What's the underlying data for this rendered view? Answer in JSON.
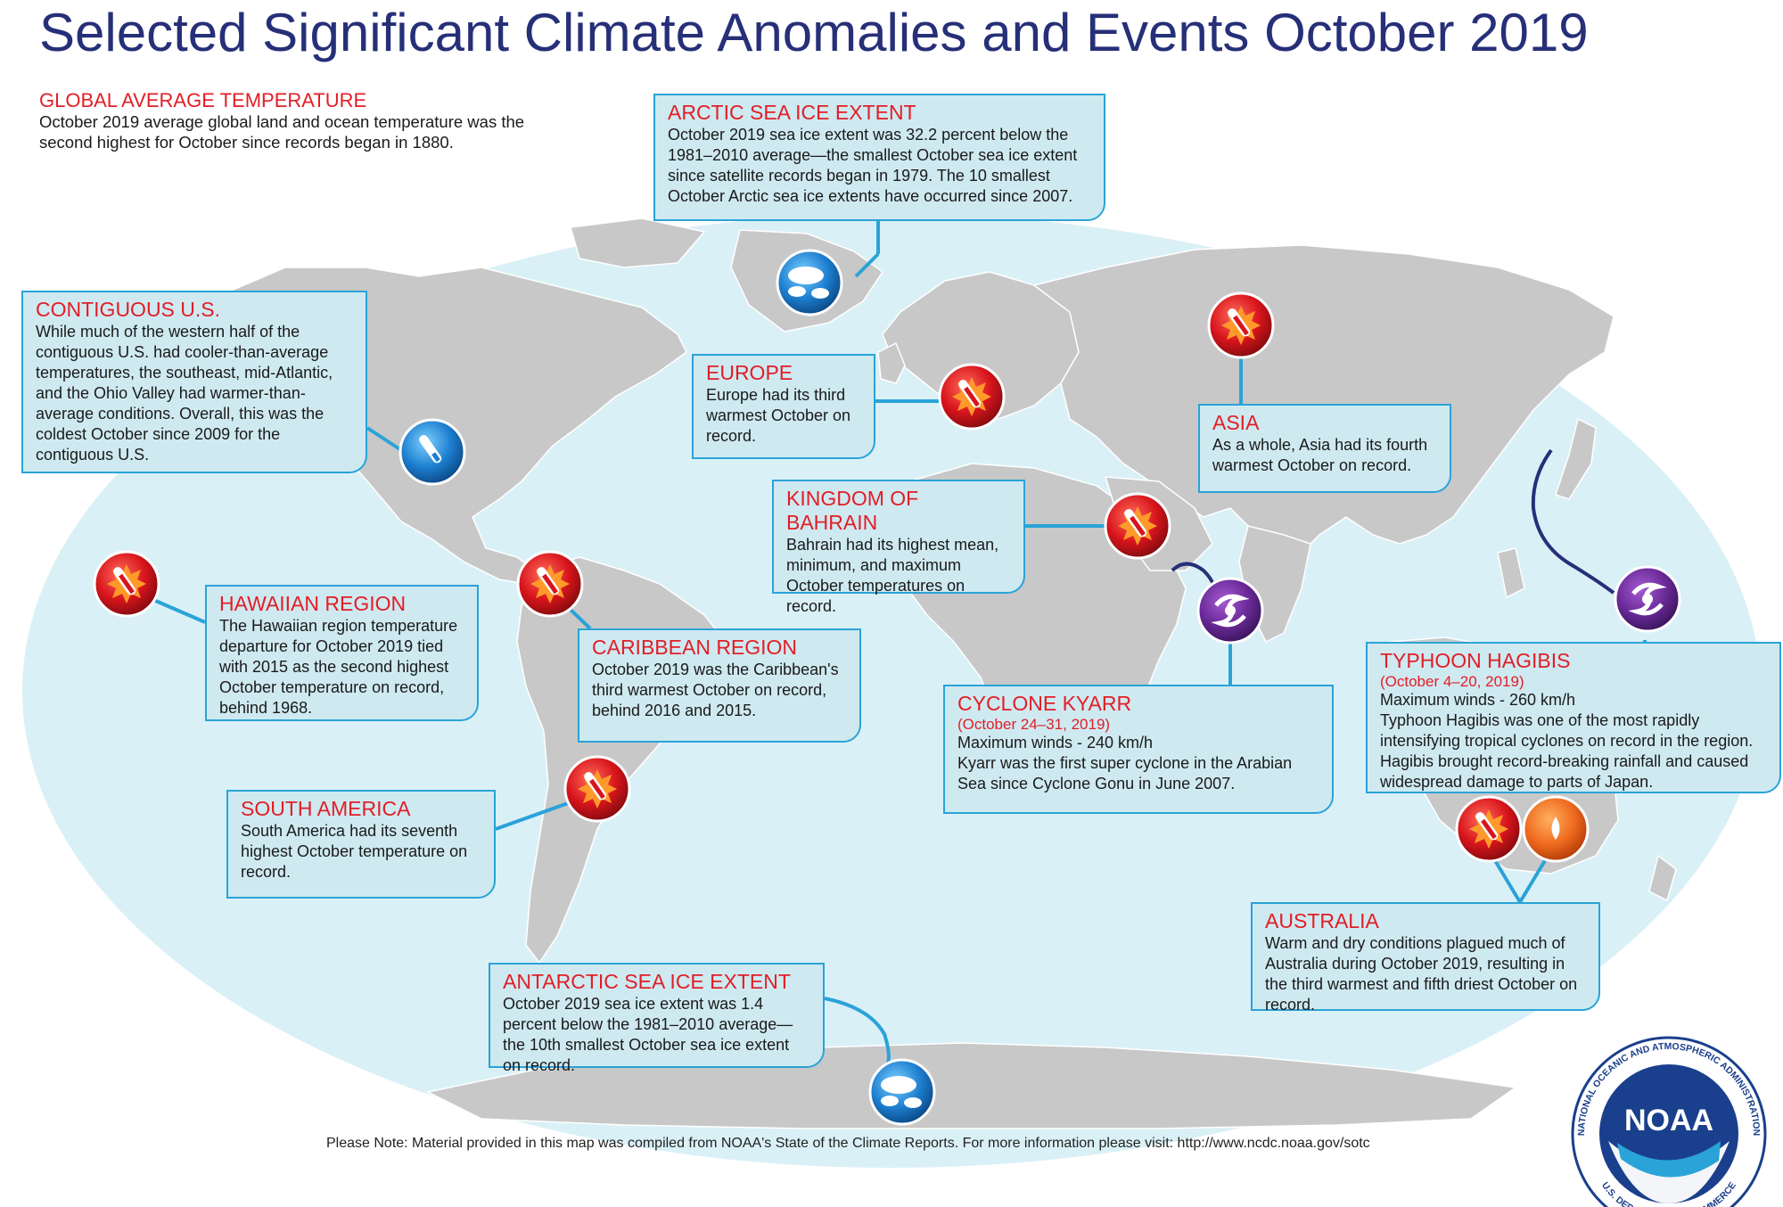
{
  "title": "Selected Significant Climate Anomalies and Events October 2019",
  "global": {
    "heading": "GLOBAL AVERAGE TEMPERATURE",
    "text": "October 2019 average global land and ocean temperature was the second highest for October since records began in 1880."
  },
  "boxes": {
    "arctic": {
      "heading": "ARCTIC SEA ICE EXTENT",
      "text": "October 2019 sea ice extent was 32.2 percent below the 1981–2010 average—the smallest October sea ice extent since satellite records began in 1979. The 10 smallest October Arctic sea ice extents have occurred since 2007."
    },
    "contiguous_us": {
      "heading": "CONTIGUOUS U.S.",
      "text": "While much of the western half of the contiguous U.S. had cooler-than-average temperatures, the southeast, mid-Atlantic, and the Ohio Valley had warmer-than-average conditions. Overall, this was the coldest October since 2009 for the contiguous U.S."
    },
    "europe": {
      "heading": "EUROPE",
      "text": "Europe had its third warmest October on record."
    },
    "asia": {
      "heading": "ASIA",
      "text": "As a whole, Asia had its fourth warmest October on record."
    },
    "bahrain": {
      "heading": "KINGDOM OF BAHRAIN",
      "text": "Bahrain had its highest mean, minimum, and maximum October temperatures on record."
    },
    "hawaii": {
      "heading": "HAWAIIAN REGION",
      "text": "The Hawaiian region temperature departure for October 2019 tied with 2015 as the second highest October temperature on record, behind 1968."
    },
    "caribbean": {
      "heading": "CARIBBEAN REGION",
      "text": "October 2019 was the Caribbean's third warmest October on record, behind 2016 and 2015."
    },
    "kyarr": {
      "heading": "CYCLONE KYARR",
      "dates": "(October 24–31, 2019)",
      "winds": "Maximum winds - 240 km/h",
      "text": "Kyarr was the first super cyclone in the Arabian Sea since Cyclone Gonu in June 2007."
    },
    "hagibis": {
      "heading": "TYPHOON HAGIBIS",
      "dates": "(October 4–20, 2019)",
      "winds": "Maximum winds - 260 km/h",
      "text": "Typhoon Hagibis was one of the most rapidly intensifying tropical cyclones on record in the region. Hagibis brought record-breaking rainfall and caused widespread damage to parts of Japan."
    },
    "south_america": {
      "heading": "SOUTH AMERICA",
      "text": "South America had its seventh highest October temperature on record."
    },
    "australia": {
      "heading": "AUSTRALIA",
      "text": "Warm and dry conditions plagued much of Australia during October 2019, resulting in the third warmest and fifth driest October on record."
    },
    "antarctic": {
      "heading": "ANTARCTIC SEA ICE EXTENT",
      "text": "October 2019 sea ice extent was 1.4 percent below the 1981–2010 average—the 10th smallest October sea ice extent on record."
    }
  },
  "footnote": "Please Note: Material provided in this map was compiled from NOAA's State of the Climate Reports. For more information please visit: http://www.ncdc.noaa.gov/sotc",
  "logo": {
    "name": "NOAA",
    "ring_text": "NATIONAL OCEANIC AND ATMOSPHERIC ADMINISTRATION",
    "ring_text_bottom": "U.S. DEPARTMENT OF COMMERCE"
  },
  "icons": {
    "warm": "thermometer-warm-icon",
    "cold": "thermometer-cold-icon",
    "ice": "sea-ice-icon",
    "cyclone": "cyclone-icon",
    "drought": "drought-icon"
  },
  "colors": {
    "title": "#262f78",
    "heading": "#e21e26",
    "ocean": "#daf0f7",
    "land": "#c8c8c8",
    "box_fill": "#cfe9f1",
    "box_border": "#2aa3d8",
    "warm": "#e21e26",
    "cold": "#1d7fd0",
    "cyclone": "#6a2a98",
    "track": "#262f78",
    "drought": "#ef6b1f"
  }
}
